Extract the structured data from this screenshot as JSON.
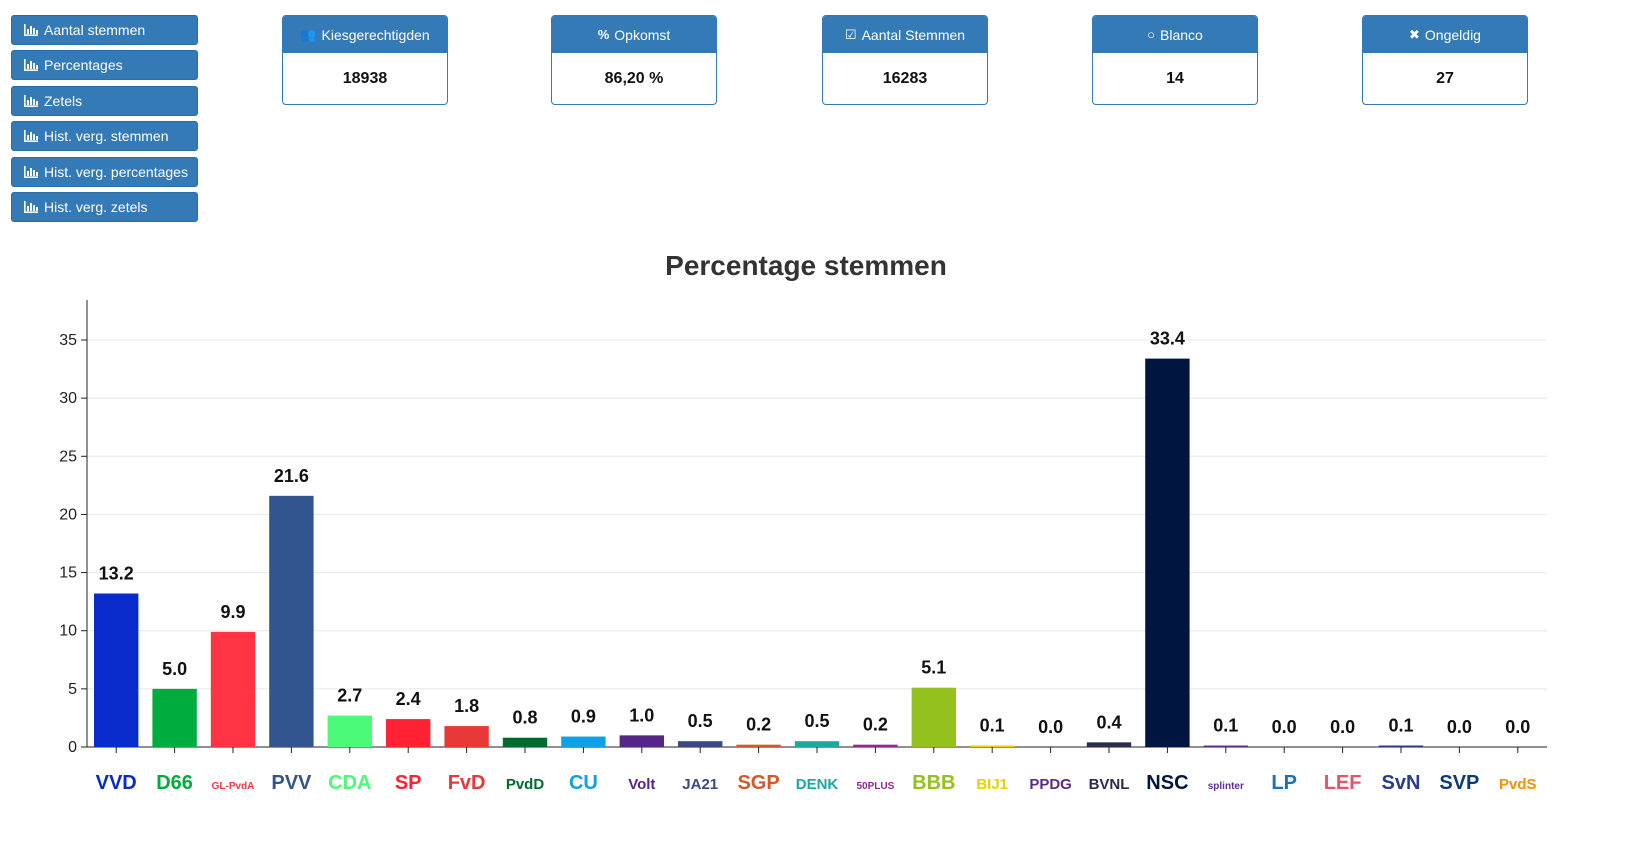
{
  "nav": [
    {
      "label": "Aantal stemmen"
    },
    {
      "label": "Percentages"
    },
    {
      "label": "Zetels"
    },
    {
      "label": "Hist. verg. stemmen"
    },
    {
      "label": "Hist. verg. percentages"
    },
    {
      "label": "Hist. verg. zetels"
    }
  ],
  "stats": [
    {
      "icon": "users-icon",
      "label": "Kiesgerechtigden",
      "value": "18938"
    },
    {
      "icon": "percent-icon",
      "label": "Opkomst",
      "value": "86,20 %"
    },
    {
      "icon": "checkbox-icon",
      "label": "Aantal Stemmen",
      "value": "16283"
    },
    {
      "icon": "circle-icon",
      "label": "Blanco",
      "value": "14"
    },
    {
      "icon": "cross-icon",
      "label": "Ongeldig",
      "value": "27"
    }
  ],
  "colors": {
    "primary": "#337ab7"
  },
  "chart_data": {
    "type": "bar",
    "title": "Percentage stemmen",
    "xlabel": "",
    "ylabel": "",
    "ylim": [
      0,
      35
    ],
    "yticks": [
      "0",
      "5",
      "10",
      "15",
      "20",
      "25",
      "30",
      "35"
    ],
    "grid": true,
    "categories": [
      "VVD",
      "D66",
      "GROEN LINKS PvdA",
      "Partij voor de Vrijheid",
      "CDA",
      "SP",
      "Forum voor Democratie",
      "Partij voor de Dieren",
      "ChristenUnie",
      "Volt",
      "JA21",
      "SGP",
      "DENK",
      "50PLUS",
      "BBB",
      "BIJ1",
      "Piratenpartij De Groenen",
      "BVNL",
      "Nieuw Sociaal Contract",
      "splinter",
      "LP",
      "LEF",
      "Samen voor Nederland",
      "NL PLAN SVP",
      "PartijvdSport"
    ],
    "values": [
      13.2,
      5.0,
      9.9,
      21.6,
      2.7,
      2.4,
      1.8,
      0.8,
      0.9,
      1.0,
      0.5,
      0.2,
      0.5,
      0.2,
      5.1,
      0.1,
      0.0,
      0.4,
      33.4,
      0.1,
      0.0,
      0.0,
      0.1,
      0.0,
      0.0
    ],
    "labels": [
      "13.2",
      "5.0",
      "9.9",
      "21.6",
      "2.7",
      "2.4",
      "1.8",
      "0.8",
      "0.9",
      "1.0",
      "0.5",
      "0.2",
      "0.5",
      "0.2",
      "5.1",
      "0.1",
      "0.0",
      "0.4",
      "33.4",
      "0.1",
      "0.0",
      "0.0",
      "0.1",
      "0.0",
      "0.0"
    ],
    "colors": [
      "#0a2bcc",
      "#00ac3e",
      "#ff3344",
      "#33558f",
      "#4cfa7a",
      "#ff2233",
      "#e83838",
      "#006b2e",
      "#0fa0e6",
      "#562686",
      "#3a4a80",
      "#d8572a",
      "#1aa8a0",
      "#93278f",
      "#95c11f",
      "#e8d000",
      "#5b2b88",
      "#2b2b4b",
      "#001640",
      "#5e2f8c",
      "#1d70b8",
      "#e8536a",
      "#2b3990",
      "#0b3a7a",
      "#f39200"
    ],
    "logos": [
      "VVD",
      "D66",
      "GL-PvdA",
      "PVV",
      "CDA",
      "SP",
      "FvD",
      "PvdD",
      "CU",
      "Volt",
      "JA21",
      "SGP",
      "DENK",
      "50PLUS",
      "BBB",
      "BIJ1",
      "PPDG",
      "BVNL",
      "NSC",
      "splinter",
      "LP",
      "LEF",
      "SvN",
      "SVP",
      "PvdS"
    ]
  }
}
